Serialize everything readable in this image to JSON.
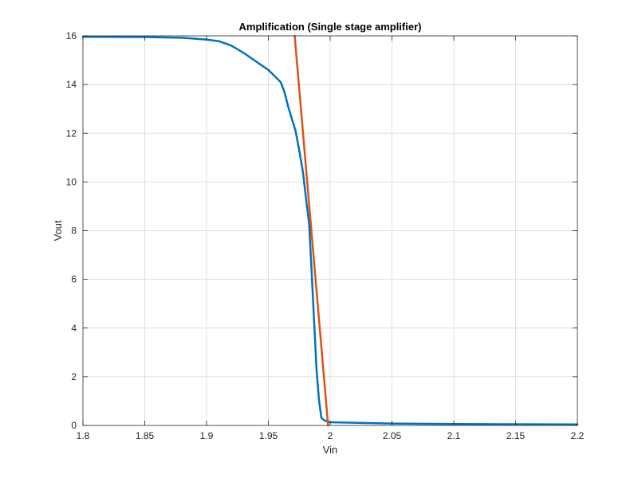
{
  "chart_data": {
    "type": "line",
    "title": "Amplification (Single stage amplifier)",
    "xlabel": "Vin",
    "ylabel": "Vout",
    "xlim": [
      1.8,
      2.2
    ],
    "ylim": [
      0,
      16
    ],
    "xticks": [
      1.8,
      1.85,
      1.9,
      1.95,
      2,
      2.05,
      2.1,
      2.15,
      2.2
    ],
    "xtick_labels": [
      "1.8",
      "1.85",
      "1.9",
      "1.95",
      "2",
      "2.05",
      "2.1",
      "2.15",
      "2.2"
    ],
    "yticks": [
      0,
      2,
      4,
      6,
      8,
      10,
      12,
      14,
      16
    ],
    "ytick_labels": [
      "0",
      "2",
      "4",
      "6",
      "8",
      "10",
      "12",
      "14",
      "16"
    ],
    "grid": true,
    "series": [
      {
        "color": "#0072BD",
        "x": [
          1.8,
          1.85,
          1.88,
          1.9,
          1.91,
          1.92,
          1.93,
          1.94,
          1.95,
          1.955,
          1.96,
          1.963,
          1.966,
          1.969,
          1.972,
          1.975,
          1.978,
          1.981,
          1.983,
          1.985,
          1.987,
          1.989,
          1.991,
          1.993,
          1.995,
          1.997,
          2.0,
          2.05,
          2.1,
          2.15,
          2.2
        ],
        "y": [
          15.96,
          15.95,
          15.92,
          15.85,
          15.78,
          15.6,
          15.3,
          14.95,
          14.6,
          14.35,
          14.1,
          13.7,
          13.1,
          12.6,
          12.1,
          11.3,
          10.4,
          9.1,
          8.3,
          6.3,
          4.3,
          2.3,
          1.0,
          0.3,
          0.22,
          0.17,
          0.13,
          0.08,
          0.06,
          0.05,
          0.04
        ]
      },
      {
        "color": "#D95319",
        "x": [
          1.9713,
          1.9983
        ],
        "y": [
          16,
          0
        ]
      }
    ]
  },
  "colors": {
    "axes": "#262626",
    "grid": "#dfdfdf",
    "background": "#ffffff"
  }
}
